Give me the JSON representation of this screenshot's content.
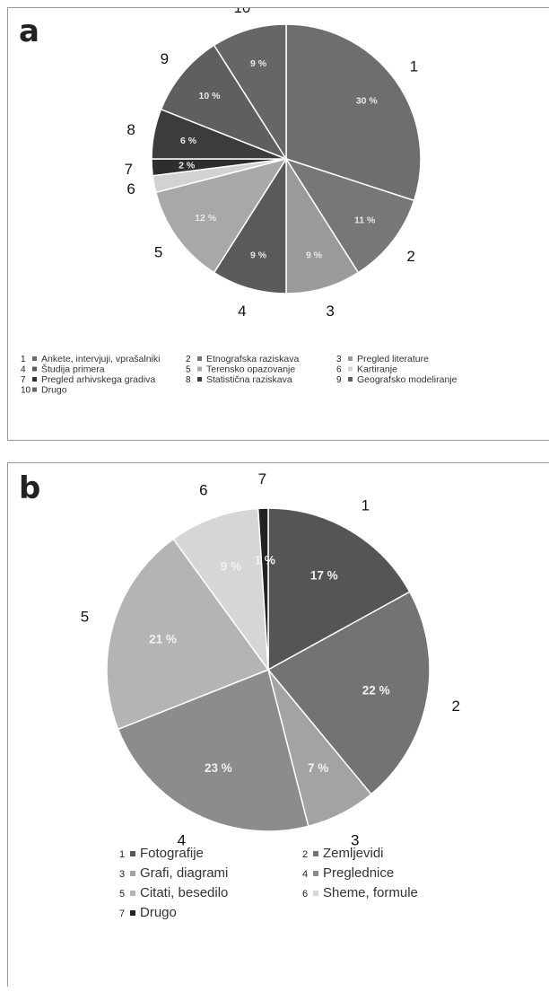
{
  "panels": [
    {
      "letter": "a",
      "chart_data": {
        "type": "pie",
        "slices": [
          {
            "number": "1",
            "label": "Ankete, intervjuji, vprašalniki",
            "value": 30,
            "value_label": "30 %",
            "color": "#6e6e6e"
          },
          {
            "number": "2",
            "label": "Etnografska raziskava",
            "value": 11,
            "value_label": "11 %",
            "color": "#777777"
          },
          {
            "number": "3",
            "label": "Pregled literature",
            "value": 9,
            "value_label": "9 %",
            "color": "#9a9a9a"
          },
          {
            "number": "4",
            "label": "Študija primera",
            "value": 9,
            "value_label": "9 %",
            "color": "#5a5a5a"
          },
          {
            "number": "5",
            "label": "Terensko opazovanje",
            "value": 12,
            "value_label": "12 %",
            "color": "#a8a8a8"
          },
          {
            "number": "6",
            "label": "Kartiranje",
            "value": 2,
            "value_label": "",
            "color": "#d2d2d2"
          },
          {
            "number": "7",
            "label": "Pregled arhivskega gradiva",
            "value": 2,
            "value_label": "2 %",
            "color": "#2e2e2e"
          },
          {
            "number": "8",
            "label": "Statistična raziskava",
            "value": 6,
            "value_label": "6 %",
            "color": "#3c3c3c"
          },
          {
            "number": "9",
            "label": "Geografsko modeliranje",
            "value": 10,
            "value_label": "10 %",
            "color": "#5f5f5f"
          },
          {
            "number": "10",
            "label": "Drugo",
            "value": 9,
            "value_label": "9 %",
            "color": "#666666"
          }
        ],
        "legend_placement": "bottom"
      }
    },
    {
      "letter": "b",
      "chart_data": {
        "type": "pie",
        "slices": [
          {
            "number": "1",
            "label": "Fotografije",
            "value": 17,
            "value_label": "17 %",
            "color": "#555555"
          },
          {
            "number": "2",
            "label": "Zemljevidi",
            "value": 22,
            "value_label": "22 %",
            "color": "#737373"
          },
          {
            "number": "3",
            "label": "Grafi, diagrami",
            "value": 7,
            "value_label": "7 %",
            "color": "#a3a3a3"
          },
          {
            "number": "4",
            "label": "Preglednice",
            "value": 23,
            "value_label": "23 %",
            "color": "#8c8c8c"
          },
          {
            "number": "5",
            "label": "Citati, besedilo",
            "value": 21,
            "value_label": "21 %",
            "color": "#b4b4b4"
          },
          {
            "number": "6",
            "label": "Sheme, formule",
            "value": 9,
            "value_label": "9 %",
            "color": "#d6d6d6"
          },
          {
            "number": "7",
            "label": "Drugo",
            "value": 1,
            "value_label": "1 %",
            "color": "#222222"
          }
        ],
        "legend_placement": "bottom"
      }
    }
  ]
}
